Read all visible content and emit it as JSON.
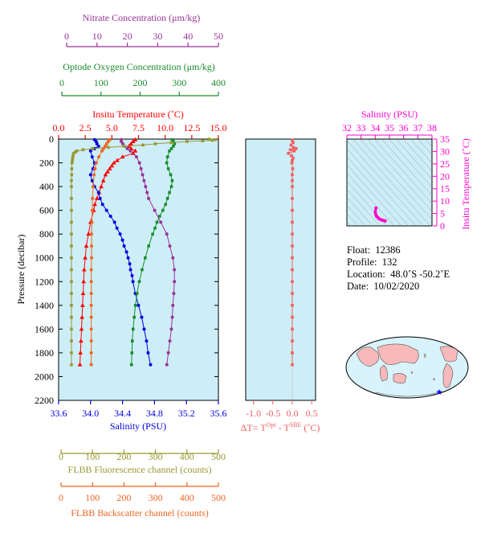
{
  "colors": {
    "panel_bg": "#cdeef7",
    "nitrate": "#993399",
    "oxygen": "#1a8c2e",
    "temperature": "#ff0000",
    "salinity": "#0000dd",
    "fluorescence": "#999933",
    "backscatter": "#ee6622",
    "delta_t": "#f06060",
    "ts_diagram": "#ff00cc"
  },
  "axes": {
    "nitrate": {
      "label": "Nitrate Concentration (μm/kg)",
      "ticks": [
        "0",
        "10",
        "20",
        "30",
        "40",
        "50"
      ]
    },
    "oxygen": {
      "label": "Optode Oxygen Concentration (μm/kg)",
      "ticks": [
        "0",
        "100",
        "200",
        "300",
        "400"
      ]
    },
    "temperature": {
      "label": "Insitu Temperature (˚C)",
      "ticks": [
        "0.0",
        "2.5",
        "5.0",
        "7.5",
        "10.0",
        "12.5",
        "15.0"
      ]
    },
    "salinity": {
      "label": "Salinity (PSU)",
      "ticks": [
        "33.6",
        "34.0",
        "34.4",
        "34.8",
        "35.2",
        "35.6"
      ]
    },
    "pressure": {
      "label": "Pressure (decibar)",
      "ticks": [
        "0",
        "200",
        "400",
        "600",
        "800",
        "1000",
        "1200",
        "1400",
        "1600",
        "1800",
        "2000",
        "2200"
      ]
    },
    "fluorescence": {
      "label": "FLBB Fluorescence channel (counts)",
      "ticks": [
        "0",
        "100",
        "200",
        "300",
        "400",
        "500"
      ]
    },
    "backscatter": {
      "label": "FLBB Backscatter channel (counts)",
      "ticks": [
        "0",
        "100",
        "200",
        "300",
        "400",
        "500"
      ]
    },
    "delta_t": {
      "label_main": "ΔT= T",
      "sup1": "Opt",
      "label_mid": " - T",
      "sup2": "SBE",
      "label_end": " (˚C)",
      "ticks": [
        "-1.0",
        "-0.5",
        "0.0",
        "0.5"
      ]
    },
    "ts_salinity": {
      "label": "Salinity (PSU)",
      "ticks": [
        "32",
        "33",
        "34",
        "35",
        "36",
        "37",
        "38"
      ]
    },
    "ts_temperature": {
      "label": "Insitu Temperature (˚C)",
      "ticks": [
        "0",
        "5",
        "10",
        "15",
        "20",
        "25",
        "30",
        "35"
      ]
    }
  },
  "info": {
    "float_label": "Float:",
    "float_value": "12386",
    "profile_label": "Profile:",
    "profile_value": "132",
    "location_label": "Location:",
    "location_value": "48.0˚S  -50.2˚E",
    "date_label": "Date:",
    "date_value": "10/02/2020"
  },
  "chart_data": {
    "type": "line",
    "y_axis": {
      "name": "pressure",
      "range": [
        0,
        2200
      ],
      "inverted": true
    },
    "series": [
      {
        "name": "Insitu Temperature",
        "unit": "˚C",
        "range": [
          0,
          15
        ],
        "marker": "triangle",
        "pressure": [
          5,
          20,
          40,
          60,
          80,
          100,
          120,
          150,
          180,
          200,
          225,
          250,
          275,
          300,
          350,
          400,
          450,
          500,
          550,
          600,
          700,
          800,
          900,
          1000,
          1100,
          1200,
          1300,
          1400,
          1500,
          1600,
          1700,
          1800,
          1900
        ],
        "values": [
          7.2,
          7.0,
          6.8,
          6.6,
          6.8,
          7.2,
          7.0,
          6.0,
          5.5,
          5.2,
          5.0,
          4.8,
          4.6,
          4.4,
          4.2,
          4.0,
          3.8,
          3.6,
          3.4,
          3.3,
          3.0,
          2.8,
          2.6,
          2.5,
          2.4,
          2.35,
          2.3,
          2.25,
          2.2,
          2.15,
          2.1,
          2.05,
          2.0
        ]
      },
      {
        "name": "Salinity",
        "unit": "PSU",
        "range": [
          33.6,
          35.6
        ],
        "marker": "circle",
        "pressure": [
          5,
          20,
          40,
          60,
          80,
          100,
          150,
          200,
          250,
          300,
          350,
          400,
          450,
          500,
          550,
          600,
          650,
          700,
          750,
          800,
          850,
          900,
          950,
          1000,
          1050,
          1100,
          1150,
          1200,
          1300,
          1400,
          1500,
          1600,
          1700,
          1800,
          1900
        ],
        "values": [
          34.05,
          34.07,
          34.08,
          34.1,
          34.05,
          34.0,
          34.02,
          34.05,
          34.03,
          34.0,
          34.02,
          34.05,
          34.1,
          34.12,
          34.15,
          34.2,
          34.25,
          34.3,
          34.33,
          34.37,
          34.4,
          34.42,
          34.45,
          34.47,
          34.49,
          34.5,
          34.52,
          34.53,
          34.56,
          34.6,
          34.64,
          34.67,
          34.7,
          34.72,
          34.75
        ]
      },
      {
        "name": "Optode Oxygen Concentration",
        "unit": "μm/kg",
        "range": [
          0,
          400
        ],
        "marker": "square",
        "pressure": [
          5,
          20,
          40,
          60,
          80,
          100,
          150,
          200,
          250,
          300,
          350,
          400,
          450,
          500,
          550,
          600,
          650,
          700,
          750,
          800,
          900,
          1000,
          1100,
          1200,
          1300,
          1400,
          1500,
          1600,
          1700,
          1800,
          1900
        ],
        "values": [
          282,
          285,
          288,
          285,
          280,
          275,
          270,
          268,
          272,
          278,
          282,
          280,
          275,
          270,
          265,
          258,
          250,
          243,
          238,
          232,
          222,
          213,
          205,
          198,
          192,
          188,
          185,
          182,
          180,
          179,
          178
        ]
      },
      {
        "name": "Nitrate Concentration",
        "unit": "μm/kg",
        "range": [
          0,
          50
        ],
        "marker": "circle",
        "pressure": [
          5,
          20,
          40,
          60,
          80,
          100,
          150,
          200,
          250,
          300,
          350,
          400,
          450,
          500,
          600,
          700,
          800,
          900,
          1000,
          1100,
          1200,
          1300,
          1400,
          1500,
          1600,
          1700,
          1800,
          1900
        ],
        "values": [
          18,
          18,
          18.5,
          19,
          20,
          21,
          23,
          24,
          24.5,
          25,
          25.5,
          26,
          26.5,
          27,
          29,
          31,
          33,
          34,
          35,
          35.5,
          35.5,
          35.3,
          35,
          34.8,
          34.5,
          34,
          33.5,
          33
        ]
      },
      {
        "name": "FLBB Fluorescence channel",
        "unit": "counts",
        "range": [
          0,
          500
        ],
        "marker": "square",
        "pressure": [
          0,
          5,
          10,
          15,
          20,
          30,
          40,
          50,
          60,
          70,
          80,
          90,
          100,
          110,
          120,
          140,
          160,
          180,
          200,
          250,
          300,
          350,
          400,
          500,
          600,
          700,
          800,
          900,
          1000,
          1100,
          1200,
          1300,
          1400,
          1500,
          1600,
          1700,
          1800,
          1900
        ],
        "values": [
          470,
          490,
          480,
          450,
          400,
          350,
          300,
          260,
          200,
          150,
          100,
          70,
          50,
          45,
          40,
          38,
          37,
          36,
          35,
          34,
          34,
          33,
          33,
          33,
          33,
          33,
          33,
          33,
          33,
          33,
          33,
          33,
          33,
          33,
          33,
          33,
          33,
          33
        ]
      },
      {
        "name": "FLBB Backscatter channel",
        "unit": "counts",
        "range": [
          0,
          500
        ],
        "marker": "circle",
        "pressure": [
          5,
          20,
          40,
          60,
          80,
          100,
          150,
          200,
          250,
          300,
          400,
          500,
          600,
          700,
          800,
          900,
          1000,
          1100,
          1200,
          1300,
          1400,
          1500,
          1600,
          1700,
          1800,
          1900
        ],
        "values": [
          155,
          150,
          145,
          140,
          135,
          130,
          120,
          112,
          108,
          105,
          102,
          100,
          99,
          98,
          97,
          97,
          97,
          96,
          96,
          96,
          96,
          96,
          96,
          96,
          96,
          96
        ]
      },
      {
        "name": "ΔT",
        "unit": "˚C",
        "range": [
          -1.2,
          0.6
        ],
        "marker": "square",
        "pressure": [
          10,
          30,
          50,
          70,
          80,
          90,
          100,
          120,
          140,
          160,
          180,
          200,
          250,
          300,
          350,
          400,
          500,
          600,
          700,
          800,
          900,
          1000,
          1100,
          1200,
          1300,
          1400,
          1500,
          1600,
          1700,
          1800,
          1900
        ],
        "values": [
          0.0,
          0.02,
          -0.03,
          0.03,
          0.1,
          -0.05,
          0.05,
          -0.1,
          -0.02,
          0.02,
          0.0,
          -0.01,
          0.01,
          0.0,
          0.0,
          0.0,
          0.0,
          0.0,
          0.0,
          0.0,
          0.0,
          0.0,
          0.0,
          0.0,
          0.0,
          0.0,
          0.0,
          0.0,
          0.0,
          0.0,
          0.0
        ]
      }
    ],
    "ts_diagram": {
      "type": "scatter",
      "x_range": [
        32,
        38
      ],
      "y_range": [
        0,
        35
      ],
      "salinity": [
        34.05,
        34.0,
        34.05,
        34.1,
        34.2,
        34.3,
        34.4,
        34.5,
        34.6,
        34.7
      ],
      "temperature": [
        7.2,
        5.5,
        4.5,
        3.8,
        3.3,
        2.8,
        2.5,
        2.3,
        2.2,
        2.0
      ]
    }
  }
}
